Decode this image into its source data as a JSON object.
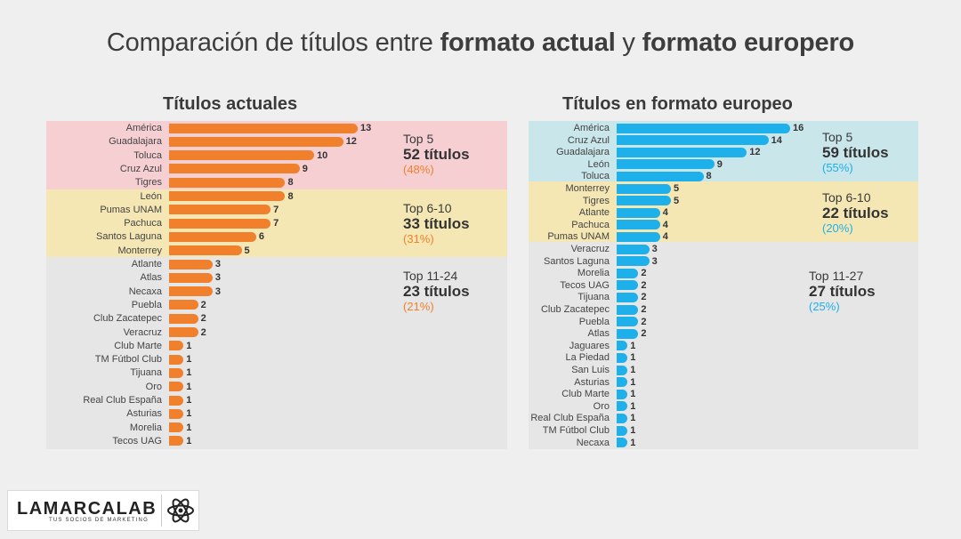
{
  "title": {
    "part1": "Comparación de títulos entre ",
    "bold1": "formato actual",
    "part2": " y ",
    "bold2": "formato europero"
  },
  "brand": {
    "name": "LAMARCALAB",
    "tagline": "TUS SOCIOS DE MARKETING",
    "icon": "atom-icon"
  },
  "colors": {
    "left_bar": "#f0802c",
    "right_bar": "#1eb0ea",
    "top5_left_band": "#f6cfd3",
    "top5_right_band": "#c9e6ea",
    "mid_band": "#f5e7b4",
    "low_band": "#e6e6e6"
  },
  "chart_data": [
    {
      "type": "bar",
      "orientation": "horizontal",
      "title": "Títulos actuales",
      "categories": [
        "América",
        "Guadalajara",
        "Toluca",
        "Cruz Azul",
        "Tigres",
        "León",
        "Pumas UNAM",
        "Pachuca",
        "Santos Laguna",
        "Monterrey",
        "Atlante",
        "Atlas",
        "Necaxa",
        "Puebla",
        "Club Zacatepec",
        "Veracruz",
        "Club Marte",
        "TM Fútbol Club",
        "Tijuana",
        "Oro",
        "Real Club España",
        "Asturias",
        "Morelia",
        "Tecos UAG"
      ],
      "values": [
        13,
        12,
        10,
        9,
        8,
        8,
        7,
        7,
        6,
        5,
        3,
        3,
        3,
        2,
        2,
        2,
        1,
        1,
        1,
        1,
        1,
        1,
        1,
        1
      ],
      "xlim": [
        0,
        13
      ],
      "groups": [
        {
          "label": "Top 5",
          "count": "52 títulos",
          "pct": "(48%)",
          "start": 0,
          "end": 4
        },
        {
          "label": "Top 6-10",
          "count": "33 títulos",
          "pct": "(31%)",
          "start": 5,
          "end": 9
        },
        {
          "label": "Top 11-24",
          "count": "23 títulos",
          "pct": "(21%)",
          "start": 10,
          "end": 23
        }
      ]
    },
    {
      "type": "bar",
      "orientation": "horizontal",
      "title": "Títulos en formato europeo",
      "categories": [
        "América",
        "Cruz Azul",
        "Guadalajara",
        "León",
        "Toluca",
        "Monterrey",
        "Tigres",
        "Atlante",
        "Pachuca",
        "Pumas UNAM",
        "Veracruz",
        "Santos Laguna",
        "Morelia",
        "Tecos UAG",
        "Tijuana",
        "Club Zacatepec",
        "Puebla",
        "Atlas",
        "Jaguares",
        "La Piedad",
        "San Luis",
        "Asturias",
        "Club Marte",
        "Oro",
        "Real Club España",
        "TM Fútbol Club",
        "Necaxa"
      ],
      "values": [
        16,
        14,
        12,
        9,
        8,
        5,
        5,
        4,
        4,
        4,
        3,
        3,
        2,
        2,
        2,
        2,
        2,
        2,
        1,
        1,
        1,
        1,
        1,
        1,
        1,
        1,
        1
      ],
      "xlim": [
        0,
        16
      ],
      "groups": [
        {
          "label": "Top 5",
          "count": "59 títulos",
          "pct": "(55%)",
          "start": 0,
          "end": 4
        },
        {
          "label": "Top 6-10",
          "count": "22 títulos",
          "pct": "(20%)",
          "start": 5,
          "end": 9
        },
        {
          "label": "Top 11-27",
          "count": "27 títulos",
          "pct": "(25%)",
          "start": 10,
          "end": 26
        }
      ]
    }
  ]
}
